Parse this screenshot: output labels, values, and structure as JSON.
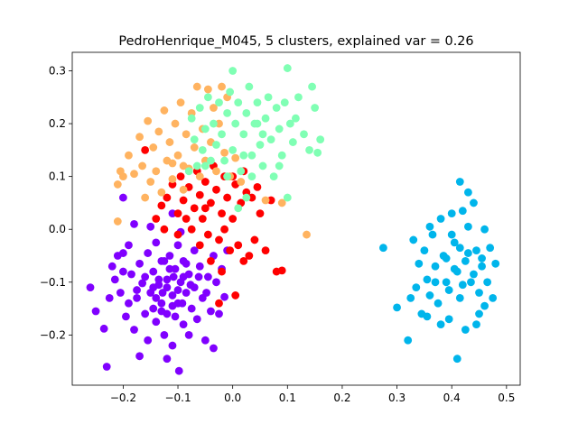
{
  "chart_data": {
    "type": "scatter",
    "title": "PedroHenrique_M045, 5 clusters, explained var = 0.26",
    "xlabel": "",
    "ylabel": "",
    "xlim": [
      -0.293,
      0.525
    ],
    "ylim": [
      -0.295,
      0.335
    ],
    "xticks": [
      -0.2,
      -0.1,
      0.0,
      0.1,
      0.2,
      0.3,
      0.4,
      0.5
    ],
    "xtick_labels": [
      "−0.2",
      "−0.1",
      "0.0",
      "0.1",
      "0.2",
      "0.3",
      "0.4",
      "0.5"
    ],
    "yticks": [
      -0.2,
      -0.1,
      0.0,
      0.1,
      0.2,
      0.3
    ],
    "ytick_labels": [
      "−0.2",
      "−0.1",
      "0.0",
      "0.1",
      "0.2",
      "0.3"
    ],
    "grid": false,
    "legend": false,
    "series": [
      {
        "color": "#8000ff",
        "points": [
          [
            -0.26,
            -0.11
          ],
          [
            -0.25,
            -0.155
          ],
          [
            -0.23,
            -0.26
          ],
          [
            -0.235,
            -0.188
          ],
          [
            -0.22,
            -0.07
          ],
          [
            -0.205,
            -0.12
          ],
          [
            -0.2,
            -0.045
          ],
          [
            -0.19,
            -0.14
          ],
          [
            -0.185,
            -0.085
          ],
          [
            -0.18,
            -0.19
          ],
          [
            -0.175,
            -0.13
          ],
          [
            -0.17,
            -0.065
          ],
          [
            -0.165,
            -0.102
          ],
          [
            -0.16,
            -0.16
          ],
          [
            -0.155,
            -0.045
          ],
          [
            -0.155,
            -0.21
          ],
          [
            -0.15,
            -0.12
          ],
          [
            -0.145,
            -0.08
          ],
          [
            -0.14,
            -0.175
          ],
          [
            -0.14,
            -0.025
          ],
          [
            -0.135,
            -0.105
          ],
          [
            -0.13,
            -0.14
          ],
          [
            -0.13,
            -0.06
          ],
          [
            -0.125,
            -0.2
          ],
          [
            -0.12,
            -0.095
          ],
          [
            -0.12,
            -0.16
          ],
          [
            -0.115,
            -0.05
          ],
          [
            -0.11,
            -0.125
          ],
          [
            -0.11,
            -0.22
          ],
          [
            -0.105,
            -0.075
          ],
          [
            -0.1,
            -0.14
          ],
          [
            -0.1,
            -0.03
          ],
          [
            -0.098,
            -0.268
          ],
          [
            -0.095,
            -0.1
          ],
          [
            -0.09,
            -0.18
          ],
          [
            -0.09,
            -0.06
          ],
          [
            -0.085,
            -0.12
          ],
          [
            -0.08,
            -0.085
          ],
          [
            -0.08,
            -0.2
          ],
          [
            -0.075,
            -0.15
          ],
          [
            -0.07,
            -0.04
          ],
          [
            -0.07,
            -0.11
          ],
          [
            -0.065,
            -0.17
          ],
          [
            -0.06,
            -0.07
          ],
          [
            -0.055,
            -0.13
          ],
          [
            -0.05,
            -0.21
          ],
          [
            -0.045,
            -0.09
          ],
          [
            -0.04,
            -0.155
          ],
          [
            -0.035,
            -0.05
          ],
          [
            -0.03,
            -0.1
          ],
          [
            -0.025,
            -0.16
          ],
          [
            -0.02,
            -0.075
          ],
          [
            -0.015,
            -0.128
          ],
          [
            -0.01,
            -0.04
          ],
          [
            -0.19,
            -0.03
          ],
          [
            -0.215,
            -0.095
          ],
          [
            -0.17,
            -0.24
          ],
          [
            -0.145,
            -0.15
          ],
          [
            -0.125,
            -0.06
          ],
          [
            -0.108,
            -0.09
          ],
          [
            -0.092,
            -0.14
          ],
          [
            -0.077,
            -0.105
          ],
          [
            -0.062,
            -0.09
          ],
          [
            -0.048,
            -0.12
          ],
          [
            -0.14,
            -0.13
          ],
          [
            -0.12,
            -0.11
          ],
          [
            -0.135,
            -0.095
          ],
          [
            -0.115,
            -0.075
          ],
          [
            -0.1,
            -0.115
          ],
          [
            -0.085,
            -0.065
          ],
          [
            -0.13,
            -0.155
          ],
          [
            -0.105,
            -0.165
          ],
          [
            -0.16,
            -0.09
          ],
          [
            -0.175,
            -0.115
          ],
          [
            -0.195,
            -0.165
          ],
          [
            -0.2,
            -0.08
          ],
          [
            -0.21,
            -0.05
          ],
          [
            -0.225,
            -0.13
          ],
          [
            -0.12,
            -0.245
          ],
          [
            -0.035,
            -0.225
          ],
          [
            -0.095,
            -0.005
          ],
          [
            -0.15,
            0.005
          ],
          [
            -0.18,
            0.01
          ],
          [
            -0.11,
            0.03
          ],
          [
            -0.2,
            0.06
          ],
          [
            -0.145,
            -0.11
          ],
          [
            -0.128,
            -0.12
          ],
          [
            -0.11,
            -0.145
          ],
          [
            -0.09,
            -0.09
          ]
        ]
      },
      {
        "color": "#ff0000",
        "points": [
          [
            -0.16,
            0.15
          ],
          [
            -0.14,
            0.02
          ],
          [
            -0.13,
            0.045
          ],
          [
            -0.12,
            0.06
          ],
          [
            -0.11,
            0.085
          ],
          [
            -0.1,
            0.03
          ],
          [
            -0.095,
            0.1
          ],
          [
            -0.09,
            0.055
          ],
          [
            -0.08,
            0.08
          ],
          [
            -0.075,
            0.0
          ],
          [
            -0.07,
            0.04
          ],
          [
            -0.065,
            0.11
          ],
          [
            -0.06,
            0.065
          ],
          [
            -0.055,
            0.02
          ],
          [
            -0.05,
            0.09
          ],
          [
            -0.045,
            -0.01
          ],
          [
            -0.04,
            0.05
          ],
          [
            -0.035,
            0.12
          ],
          [
            -0.03,
            0.075
          ],
          [
            -0.025,
            -0.02
          ],
          [
            -0.02,
            0.03
          ],
          [
            -0.015,
            0.1
          ],
          [
            -0.01,
            0.06
          ],
          [
            -0.005,
            -0.04
          ],
          [
            0.0,
            0.02
          ],
          [
            0.005,
            0.085
          ],
          [
            0.01,
            -0.03
          ],
          [
            0.015,
            0.05
          ],
          [
            0.02,
            -0.06
          ],
          [
            0.025,
            0.07
          ],
          [
            0.03,
            -0.05
          ],
          [
            0.035,
            0.06
          ],
          [
            0.04,
            -0.02
          ],
          [
            0.05,
            0.03
          ],
          [
            0.06,
            -0.04
          ],
          [
            0.07,
            0.055
          ],
          [
            0.08,
            -0.08
          ],
          [
            0.09,
            -0.078
          ],
          [
            -0.02,
            -0.08
          ],
          [
            -0.04,
            -0.06
          ],
          [
            0.005,
            -0.125
          ],
          [
            -0.025,
            -0.14
          ],
          [
            -0.05,
            0.04
          ],
          [
            -0.085,
            0.02
          ],
          [
            -0.1,
            -0.01
          ],
          [
            -0.125,
            0.0
          ],
          [
            -0.06,
            -0.03
          ],
          [
            -0.015,
            0.0
          ],
          [
            0.0,
            0.1
          ],
          [
            0.02,
            0.11
          ],
          [
            0.045,
            0.08
          ]
        ]
      },
      {
        "color": "#ffb360",
        "points": [
          [
            -0.21,
            0.085
          ],
          [
            -0.2,
            0.1
          ],
          [
            -0.19,
            0.14
          ],
          [
            -0.18,
            0.105
          ],
          [
            -0.17,
            0.175
          ],
          [
            -0.165,
            0.12
          ],
          [
            -0.16,
            0.06
          ],
          [
            -0.155,
            0.205
          ],
          [
            -0.15,
            0.09
          ],
          [
            -0.145,
            0.155
          ],
          [
            -0.14,
            0.11
          ],
          [
            -0.135,
            0.185
          ],
          [
            -0.13,
            0.07
          ],
          [
            -0.125,
            0.225
          ],
          [
            -0.12,
            0.13
          ],
          [
            -0.115,
            0.165
          ],
          [
            -0.11,
            0.095
          ],
          [
            -0.105,
            0.2
          ],
          [
            -0.1,
            0.14
          ],
          [
            -0.095,
            0.24
          ],
          [
            -0.09,
            0.075
          ],
          [
            -0.085,
            0.18
          ],
          [
            -0.08,
            0.115
          ],
          [
            -0.075,
            0.22
          ],
          [
            -0.07,
            0.155
          ],
          [
            -0.065,
            0.27
          ],
          [
            -0.06,
            0.1
          ],
          [
            -0.055,
            0.19
          ],
          [
            -0.05,
            0.13
          ],
          [
            -0.045,
            0.265
          ],
          [
            -0.04,
            0.165
          ],
          [
            -0.035,
            0.23
          ],
          [
            -0.03,
            0.11
          ],
          [
            -0.025,
            0.2
          ],
          [
            -0.02,
            0.27
          ],
          [
            -0.015,
            0.145
          ],
          [
            -0.01,
            0.25
          ],
          [
            -0.005,
            0.1
          ],
          [
            0.005,
            0.135
          ],
          [
            0.015,
            0.09
          ],
          [
            0.06,
            0.055
          ],
          [
            0.09,
            0.05
          ],
          [
            0.135,
            -0.01
          ],
          [
            -0.21,
            0.015
          ],
          [
            -0.205,
            0.11
          ],
          [
            -0.11,
            0.125
          ],
          [
            -0.09,
            0.12
          ]
        ]
      },
      {
        "color": "#80ffb4",
        "points": [
          [
            -0.08,
            0.11
          ],
          [
            -0.075,
            0.21
          ],
          [
            -0.07,
            0.17
          ],
          [
            -0.065,
            0.12
          ],
          [
            -0.06,
            0.23
          ],
          [
            -0.055,
            0.15
          ],
          [
            -0.05,
            0.19
          ],
          [
            -0.045,
            0.25
          ],
          [
            -0.04,
            0.13
          ],
          [
            -0.035,
            0.2
          ],
          [
            -0.03,
            0.16
          ],
          [
            -0.025,
            0.24
          ],
          [
            -0.02,
            0.18
          ],
          [
            -0.015,
            0.13
          ],
          [
            -0.01,
            0.22
          ],
          [
            -0.005,
            0.26
          ],
          [
            0.0,
            0.3
          ],
          [
            0.0,
            0.15
          ],
          [
            0.005,
            0.2
          ],
          [
            0.01,
            0.24
          ],
          [
            0.015,
            0.11
          ],
          [
            0.02,
            0.18
          ],
          [
            0.025,
            0.22
          ],
          [
            0.03,
            0.27
          ],
          [
            0.035,
            0.14
          ],
          [
            0.04,
            0.2
          ],
          [
            0.045,
            0.24
          ],
          [
            0.05,
            0.16
          ],
          [
            0.055,
            0.12
          ],
          [
            0.06,
            0.21
          ],
          [
            0.065,
            0.25
          ],
          [
            0.07,
            0.17
          ],
          [
            0.075,
            0.1
          ],
          [
            0.08,
            0.23
          ],
          [
            0.085,
            0.19
          ],
          [
            0.09,
            0.14
          ],
          [
            0.095,
            0.24
          ],
          [
            0.1,
            0.305
          ],
          [
            0.105,
            0.2
          ],
          [
            0.11,
            0.165
          ],
          [
            0.115,
            0.21
          ],
          [
            0.12,
            0.25
          ],
          [
            0.13,
            0.18
          ],
          [
            0.14,
            0.15
          ],
          [
            0.145,
            0.27
          ],
          [
            0.15,
            0.23
          ],
          [
            0.16,
            0.17
          ],
          [
            0.155,
            0.145
          ],
          [
            0.1,
            0.06
          ],
          [
            0.085,
            0.12
          ],
          [
            0.01,
            0.04
          ],
          [
            -0.01,
            0.1
          ],
          [
            0.025,
            0.06
          ],
          [
            0.035,
            0.1
          ],
          [
            0.045,
            0.2
          ],
          [
            0.055,
            0.18
          ],
          [
            0.02,
            0.14
          ],
          [
            -0.05,
            0.12
          ]
        ]
      },
      {
        "color": "#00b5eb",
        "points": [
          [
            0.275,
            -0.035
          ],
          [
            0.3,
            -0.148
          ],
          [
            0.32,
            -0.21
          ],
          [
            0.325,
            -0.13
          ],
          [
            0.33,
            -0.02
          ],
          [
            0.335,
            -0.11
          ],
          [
            0.34,
            -0.065
          ],
          [
            0.345,
            -0.16
          ],
          [
            0.35,
            -0.04
          ],
          [
            0.355,
            -0.095
          ],
          [
            0.36,
            -0.125
          ],
          [
            0.365,
            -0.01
          ],
          [
            0.37,
            -0.07
          ],
          [
            0.375,
            -0.14
          ],
          [
            0.38,
            0.02
          ],
          [
            0.385,
            -0.05
          ],
          [
            0.39,
            -0.1
          ],
          [
            0.395,
            -0.17
          ],
          [
            0.4,
            0.03
          ],
          [
            0.405,
            -0.025
          ],
          [
            0.41,
            -0.245
          ],
          [
            0.41,
            -0.08
          ],
          [
            0.415,
            0.09
          ],
          [
            0.415,
            -0.13
          ],
          [
            0.42,
            0.035
          ],
          [
            0.425,
            -0.06
          ],
          [
            0.425,
            -0.19
          ],
          [
            0.43,
            0.005
          ],
          [
            0.435,
            -0.1
          ],
          [
            0.44,
            0.05
          ],
          [
            0.445,
            -0.04
          ],
          [
            0.45,
            -0.12
          ],
          [
            0.45,
            -0.16
          ],
          [
            0.455,
            -0.07
          ],
          [
            0.46,
            0.0
          ],
          [
            0.465,
            -0.1
          ],
          [
            0.47,
            -0.035
          ],
          [
            0.475,
            -0.13
          ],
          [
            0.48,
            -0.065
          ],
          [
            0.39,
            -0.055
          ],
          [
            0.405,
            -0.075
          ],
          [
            0.42,
            -0.105
          ],
          [
            0.43,
            -0.045
          ],
          [
            0.44,
            -0.085
          ],
          [
            0.36,
            0.005
          ],
          [
            0.355,
            -0.165
          ],
          [
            0.38,
            -0.18
          ],
          [
            0.4,
            -0.01
          ],
          [
            0.43,
            0.07
          ],
          [
            0.455,
            -0.055
          ],
          [
            0.46,
            -0.145
          ],
          [
            0.395,
            -0.115
          ],
          [
            0.415,
            -0.035
          ],
          [
            0.37,
            -0.1
          ],
          [
            0.445,
            -0.18
          ]
        ]
      }
    ]
  }
}
